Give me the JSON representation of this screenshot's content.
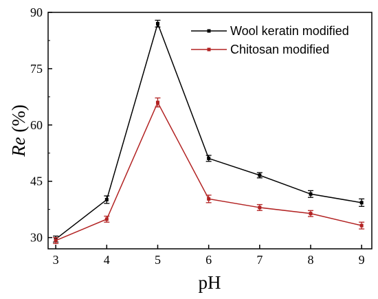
{
  "chart_data": {
    "type": "line",
    "title": "",
    "xlabel": "pH",
    "ylabel_italic": "Re",
    "ylabel_suffix": " (%)",
    "x": [
      3,
      4,
      5,
      6,
      7,
      8,
      9
    ],
    "xlim": [
      2.85,
      9.2
    ],
    "ylim": [
      27,
      90
    ],
    "xticks": [
      3,
      4,
      5,
      6,
      7,
      8,
      9
    ],
    "yticks": [
      30,
      45,
      60,
      75,
      90
    ],
    "grid": false,
    "legend_position": "top-right",
    "series": [
      {
        "name": "Wool keratin modified",
        "color": "#000000",
        "values": [
          29.6,
          40.1,
          87.0,
          51.1,
          46.6,
          41.6,
          39.3
        ],
        "errors": [
          0.8,
          1.0,
          0.9,
          0.8,
          0.7,
          0.9,
          1.0
        ]
      },
      {
        "name": "Chitosan modified",
        "color": "#b22222",
        "values": [
          29.2,
          34.9,
          66.0,
          40.3,
          38.0,
          36.4,
          33.2
        ],
        "errors": [
          0.8,
          0.8,
          1.2,
          1.0,
          0.8,
          0.8,
          0.9
        ]
      }
    ]
  }
}
